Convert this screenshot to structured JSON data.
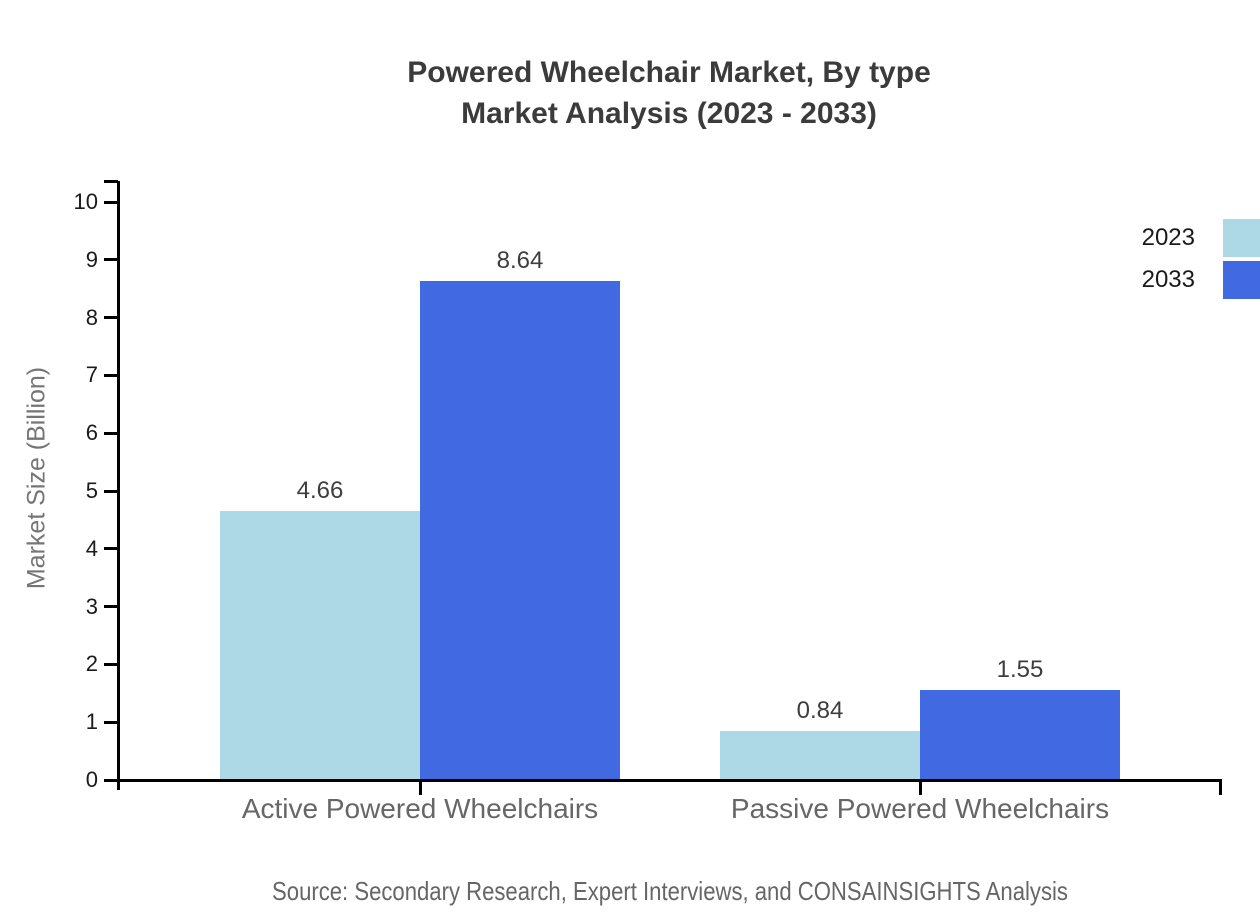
{
  "chart_data": {
    "type": "bar",
    "title_lines": [
      "Powered Wheelchair Market, By type",
      "Market Analysis (2023 - 2033)"
    ],
    "categories": [
      "Active Powered Wheelchairs",
      "Passive Powered Wheelchairs"
    ],
    "series": [
      {
        "name": "2023",
        "color": "#ADD8E6",
        "values": [
          4.66,
          0.84
        ]
      },
      {
        "name": "2033",
        "color": "#4169E1",
        "values": [
          8.64,
          1.55
        ]
      }
    ],
    "value_labels": [
      "4.66",
      "8.64",
      "0.84",
      "1.55"
    ],
    "xlabel": "",
    "ylabel": "Market Size (Billion)",
    "ylim": [
      0,
      10
    ],
    "yticks": [
      0,
      1,
      2,
      3,
      4,
      5,
      6,
      7,
      8,
      9,
      10
    ],
    "grid": false,
    "legend_position": "top-right",
    "source": "Source: Secondary Research, Expert Interviews, and CONSAINSIGHTS Analysis"
  },
  "colors": {
    "title": "#3b3b3b",
    "axis": "#000000",
    "tick_label": "#1a1a1a",
    "category_label": "#666666",
    "value_label": "#3d3d3d",
    "y_axis_label": "#757575",
    "source_text": "#666666",
    "background": "#ffffff"
  }
}
